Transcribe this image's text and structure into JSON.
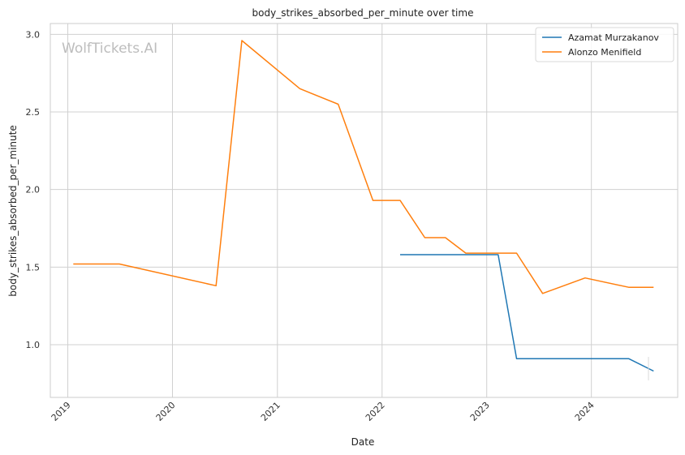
{
  "watermark": "WolfTickets.AI",
  "chart_data": {
    "type": "line",
    "title": "body_strikes_absorbed_per_minute over time",
    "xlabel": "Date",
    "ylabel": "body_strikes_absorbed_per_minute",
    "x_axis": "date",
    "xlim": [
      "2018-11-01",
      "2024-10-28"
    ],
    "ylim": [
      0.66,
      3.07
    ],
    "x_ticks": [
      "2019",
      "2020",
      "2021",
      "2022",
      "2023",
      "2024"
    ],
    "y_ticks": [
      "1.0",
      "1.5",
      "2.0",
      "2.5",
      "3.0"
    ],
    "grid": true,
    "legend_position": "top-right",
    "series": [
      {
        "name": "Azamat Murzakanov",
        "color": "#1f77b4",
        "points": [
          [
            "2022-03-05",
            1.58
          ],
          [
            "2023-02-10",
            1.58
          ],
          [
            "2023-04-15",
            0.91
          ],
          [
            "2024-05-10",
            0.91
          ],
          [
            "2024-08-05",
            0.83
          ]
        ]
      },
      {
        "name": "Alonzo Menifield",
        "color": "#ff7f0e",
        "points": [
          [
            "2019-01-20",
            1.52
          ],
          [
            "2019-06-30",
            1.52
          ],
          [
            "2020-06-01",
            1.38
          ],
          [
            "2020-08-30",
            2.96
          ],
          [
            "2021-03-20",
            2.65
          ],
          [
            "2021-08-01",
            2.55
          ],
          [
            "2021-11-30",
            1.93
          ],
          [
            "2022-03-05",
            1.93
          ],
          [
            "2022-05-30",
            1.69
          ],
          [
            "2022-08-10",
            1.69
          ],
          [
            "2022-10-20",
            1.59
          ],
          [
            "2023-04-15",
            1.59
          ],
          [
            "2023-07-15",
            1.33
          ],
          [
            "2023-12-10",
            1.43
          ],
          [
            "2024-05-10",
            1.37
          ],
          [
            "2024-08-05",
            1.37
          ]
        ]
      }
    ]
  }
}
